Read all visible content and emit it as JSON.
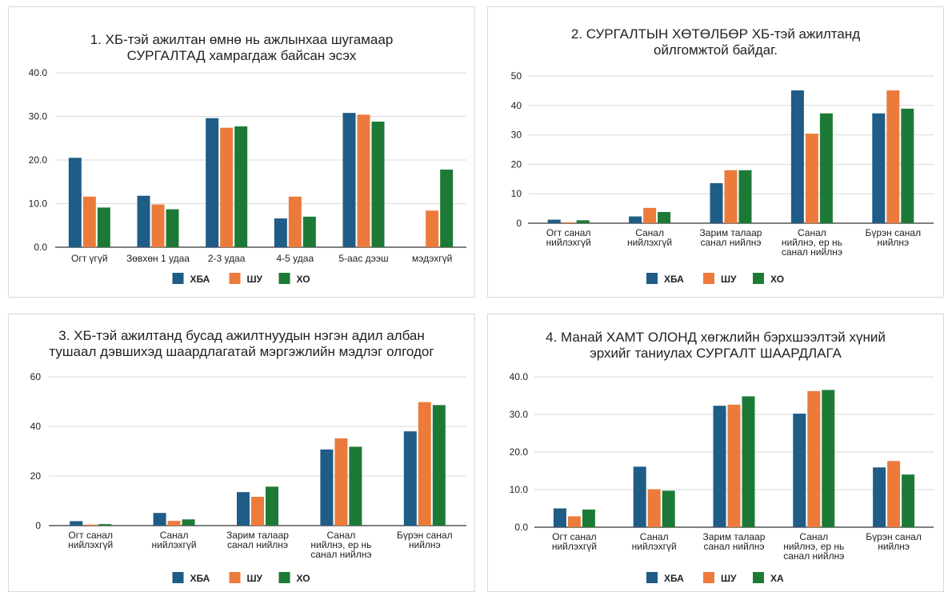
{
  "chart_data": [
    {
      "type": "bar",
      "title": "1. ХБ-тэй ажилтан өмнө нь ажлынхаа шугамаар СУРГАЛТАД хамрагдаж байсан эсэх",
      "title_lines": [
        "1. ХБ-тэй ажилтан өмнө нь ажлынхаа шугамаар",
        "СУРГАЛТАД хамрагдаж байсан эсэх"
      ],
      "categories": [
        "Огт үгүй",
        "Зөвхөн 1 удаа",
        "2-3 удаа",
        "4-5 удаа",
        "5-аас дээш",
        "мэдэхгүй"
      ],
      "series": [
        {
          "name": "ХБА",
          "values": [
            20.5,
            11.8,
            29.6,
            6.6,
            30.8,
            0
          ]
        },
        {
          "name": "ШУ",
          "values": [
            11.6,
            9.8,
            27.4,
            11.6,
            30.4,
            8.4
          ]
        },
        {
          "name": "ХО",
          "values": [
            9.1,
            8.7,
            27.7,
            7.0,
            28.8,
            17.8
          ]
        }
      ],
      "ylim": [
        0,
        40
      ],
      "yticks": [
        "0.0",
        "10.0",
        "20.0",
        "30.0",
        "40.0"
      ],
      "grid": true,
      "legend": "bottom"
    },
    {
      "type": "bar",
      "title": "2. СУРГАЛТЫН ХӨТӨЛБӨР ХБ-тэй ажилтанд ойлгомжтой байдаг.",
      "title_lines": [
        "2. СУРГАЛТЫН ХӨТӨЛБӨР ХБ-тэй ажилтанд",
        "ойлгомжтой байдаг."
      ],
      "categories": [
        "Огт санал нийлэхгүй",
        "Санал нийлэхгүй",
        "Зарим талаар санал нийлнэ",
        "Санал нийлнэ, ер нь санал нийлнэ",
        "Бүрэн санал нийлнэ"
      ],
      "category_lines": [
        [
          "Огт санал",
          "нийлэхгүй"
        ],
        [
          "Санал",
          "нийлэхгүй"
        ],
        [
          "Зарим талаар",
          "санал нийлнэ"
        ],
        [
          "Санал",
          "нийлнэ, ер нь",
          "санал нийлнэ"
        ],
        [
          "Бүрэн санал",
          "нийлнэ"
        ]
      ],
      "series": [
        {
          "name": "ХБА",
          "values": [
            1.2,
            2.3,
            13.6,
            45.1,
            37.3
          ]
        },
        {
          "name": "ШУ",
          "values": [
            0.3,
            5.2,
            18.0,
            30.4,
            45.1
          ]
        },
        {
          "name": "ХО",
          "values": [
            1.0,
            3.8,
            18.0,
            37.3,
            38.9
          ]
        }
      ],
      "ylim": [
        0,
        50
      ],
      "yticks": [
        "0",
        "10",
        "20",
        "30",
        "40",
        "50"
      ],
      "grid": true,
      "legend": "bottom"
    },
    {
      "type": "bar",
      "title": "3. ХБ-тэй ажилтанд бусад ажилтнуудын нэгэн адил албан тушаал дэвшихэд шаардлагатай мэргэжлийн мэдлэг олгодог",
      "title_lines": [
        "3. ХБ-тэй ажилтанд бусад ажилтнуудын нэгэн адил албан",
        "тушаал дэвшихэд шаардлагатай мэргэжлийн мэдлэг олгодог"
      ],
      "categories": [
        "Огт санал нийлэхгүй",
        "Санал нийлэхгүй",
        "Зарим талаар санал нийлнэ",
        "Санал нийлнэ, ер нь санал нийлнэ",
        "Бүрэн санал нийлнэ"
      ],
      "category_lines": [
        [
          "Огт санал",
          "нийлэхгүй"
        ],
        [
          "Санал",
          "нийлэхгүй"
        ],
        [
          "Зарим талаар",
          "санал нийлнэ"
        ],
        [
          "Санал",
          "нийлнэ, ер нь",
          "санал нийлнэ"
        ],
        [
          "Бүрэн санал",
          "нийлнэ"
        ]
      ],
      "series": [
        {
          "name": "ХБА",
          "values": [
            1.8,
            5.1,
            13.5,
            30.7,
            38.0
          ]
        },
        {
          "name": "ШУ",
          "values": [
            0.4,
            1.9,
            11.6,
            35.2,
            49.8
          ]
        },
        {
          "name": "ХО",
          "values": [
            0.6,
            2.5,
            15.7,
            31.8,
            48.6
          ]
        }
      ],
      "ylim": [
        0,
        60
      ],
      "yticks": [
        "0",
        "20",
        "40",
        "60"
      ],
      "grid": true,
      "legend": "bottom"
    },
    {
      "type": "bar",
      "title": "4. Манай ХАМТ ОЛОНД хөгжлийн бэрхшээлтэй хүний эрхийг таниулах СУРГАЛТ ШААРДЛАГА",
      "title_lines": [
        "4. Манай ХАМТ ОЛОНД хөгжлийн бэрхшээлтэй хүний",
        "эрхийг таниулах СУРГАЛТ ШААРДЛАГА"
      ],
      "categories": [
        "Огт санал нийлэхгүй",
        "Санал нийлэхгүй",
        "Зарим талаар санал нийлнэ",
        "Санал нийлнэ, ер нь санал нийлнэ",
        "Бүрэн санал нийлнэ"
      ],
      "category_lines": [
        [
          "Огт санал",
          "нийлэхгүй"
        ],
        [
          "Санал",
          "нийлэхгүй"
        ],
        [
          "Зарим талаар",
          "санал нийлнэ"
        ],
        [
          "Санал",
          "нийлнэ, ер нь",
          "санал нийлнэ"
        ],
        [
          "Бүрэн санал",
          "нийлнэ"
        ]
      ],
      "series": [
        {
          "name": "ХБА",
          "values": [
            5.0,
            16.1,
            32.3,
            30.2,
            15.9
          ]
        },
        {
          "name": "ШУ",
          "values": [
            2.9,
            10.1,
            32.6,
            36.2,
            17.6
          ]
        },
        {
          "name": "ХА",
          "values": [
            4.7,
            9.7,
            34.8,
            36.5,
            14.0
          ]
        }
      ],
      "ylim": [
        0,
        40
      ],
      "yticks": [
        "0.0",
        "10.0",
        "20.0",
        "30.0",
        "40.0"
      ],
      "grid": true,
      "legend": "bottom"
    }
  ],
  "colors": {
    "series": [
      "#1f5c86",
      "#ec7b3b",
      "#1d7a36"
    ],
    "grid": "#d9d9d9",
    "axis": "#333333",
    "text": "#222222",
    "border": "#d9d9d9"
  }
}
